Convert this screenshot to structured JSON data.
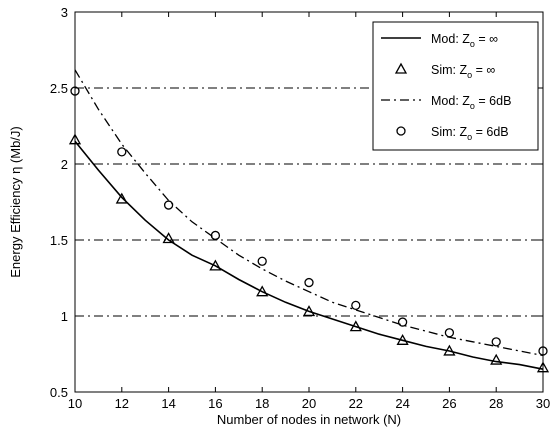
{
  "chart_data": {
    "type": "line",
    "xlabel": "Number of nodes in network (N)",
    "ylabel": "Energy Efficiency η (Mb/J)",
    "xlim": [
      10,
      30
    ],
    "ylim": [
      0.5,
      3
    ],
    "xticks": [
      "10",
      "12",
      "14",
      "16",
      "18",
      "20",
      "22",
      "24",
      "26",
      "28",
      "30"
    ],
    "yticks": [
      "0.5",
      "1",
      "1.5",
      "2",
      "2.5",
      "3"
    ],
    "grid": "horizontal dash-dot at y = 1, 1.5, 2, 2.5",
    "legend_position": "top-right",
    "series": [
      {
        "name": "Mod: Z_o = ∞",
        "legend": {
          "prefix": "Mod: Z",
          "sub": "o",
          "suffix": " = ∞"
        },
        "style": "solid",
        "x": [
          10,
          11,
          12,
          13,
          14,
          15,
          16,
          17,
          18,
          19,
          20,
          21,
          22,
          23,
          24,
          25,
          26,
          27,
          28,
          29,
          30
        ],
        "y": [
          2.15,
          1.96,
          1.78,
          1.63,
          1.5,
          1.4,
          1.33,
          1.24,
          1.16,
          1.09,
          1.03,
          0.98,
          0.93,
          0.88,
          0.84,
          0.8,
          0.77,
          0.73,
          0.7,
          0.68,
          0.65
        ]
      },
      {
        "name": "Sim: Z_o = ∞",
        "legend": {
          "prefix": "Sim: Z",
          "sub": "o",
          "suffix": " = ∞"
        },
        "style": "triangle",
        "x": [
          10,
          12,
          14,
          16,
          18,
          20,
          22,
          24,
          26,
          28,
          30
        ],
        "y": [
          2.16,
          1.77,
          1.51,
          1.33,
          1.16,
          1.03,
          0.93,
          0.84,
          0.77,
          0.71,
          0.66
        ]
      },
      {
        "name": "Mod: Z_o = 6dB",
        "legend": {
          "prefix": "Mod: Z",
          "sub": "o",
          "suffix": " = 6dB"
        },
        "style": "dashdot",
        "x": [
          10,
          11,
          12,
          13,
          14,
          15,
          16,
          17,
          18,
          19,
          20,
          21,
          22,
          23,
          24,
          25,
          26,
          27,
          28,
          29,
          30
        ],
        "y": [
          2.62,
          2.36,
          2.13,
          1.94,
          1.76,
          1.62,
          1.51,
          1.4,
          1.31,
          1.23,
          1.16,
          1.09,
          1.04,
          0.99,
          0.94,
          0.9,
          0.86,
          0.83,
          0.8,
          0.77,
          0.74
        ]
      },
      {
        "name": "Sim: Z_o = 6dB",
        "legend": {
          "prefix": "Sim: Z",
          "sub": "o",
          "suffix": " = 6dB"
        },
        "style": "circle",
        "x": [
          10,
          12,
          14,
          16,
          18,
          20,
          22,
          24,
          26,
          28,
          30
        ],
        "y": [
          2.48,
          2.08,
          1.73,
          1.53,
          1.36,
          1.22,
          1.07,
          0.96,
          0.89,
          0.83,
          0.77
        ]
      }
    ]
  }
}
